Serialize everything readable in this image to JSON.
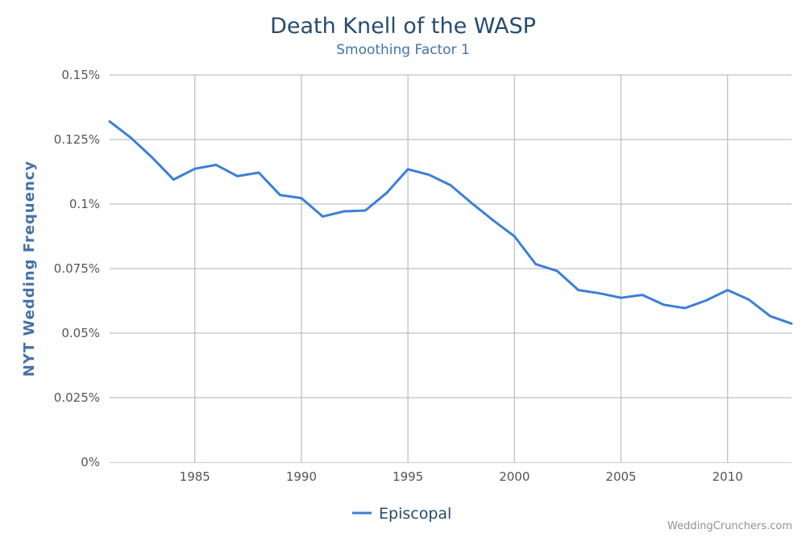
{
  "chart_data": {
    "type": "line",
    "title": "Death Knell of the WASP",
    "subtitle": "Smoothing Factor 1",
    "ylabel": "NYT Wedding Frequency",
    "xlabel": "",
    "xlim": [
      1981,
      2013
    ],
    "ylim": [
      0,
      0.15
    ],
    "x_ticks": [
      1985,
      1990,
      1995,
      2000,
      2005,
      2010
    ],
    "x_tick_labels": [
      "1985",
      "1990",
      "1995",
      "2000",
      "2005",
      "2010"
    ],
    "y_ticks": [
      0,
      0.025,
      0.05,
      0.075,
      0.1,
      0.125,
      0.15
    ],
    "y_tick_labels": [
      "0%",
      "0.025%",
      "0.05%",
      "0.075%",
      "0.1%",
      "0.125%",
      "0.15%"
    ],
    "grid": true,
    "legend_position": "bottom-center",
    "series": [
      {
        "name": "Episcopal",
        "color": "#3d7fd4",
        "x": [
          1981,
          1982,
          1983,
          1984,
          1985,
          1986,
          1987,
          1988,
          1989,
          1990,
          1991,
          1992,
          1993,
          1994,
          1995,
          1996,
          1997,
          1998,
          1999,
          2000,
          2001,
          2002,
          2003,
          2004,
          2005,
          2006,
          2007,
          2008,
          2009,
          2010,
          2011,
          2012,
          2013
        ],
        "values": [
          0.132,
          0.1257,
          0.118,
          0.1095,
          0.1137,
          0.1152,
          0.1108,
          0.1122,
          0.1035,
          0.1023,
          0.0952,
          0.0972,
          0.0975,
          0.1043,
          0.1135,
          0.1113,
          0.1073,
          0.1003,
          0.0937,
          0.0875,
          0.0767,
          0.0741,
          0.0667,
          0.0654,
          0.0637,
          0.0648,
          0.061,
          0.0597,
          0.0627,
          0.0667,
          0.063,
          0.0566,
          0.0537
        ]
      }
    ]
  },
  "credit": "WeddingCrunchers.com"
}
